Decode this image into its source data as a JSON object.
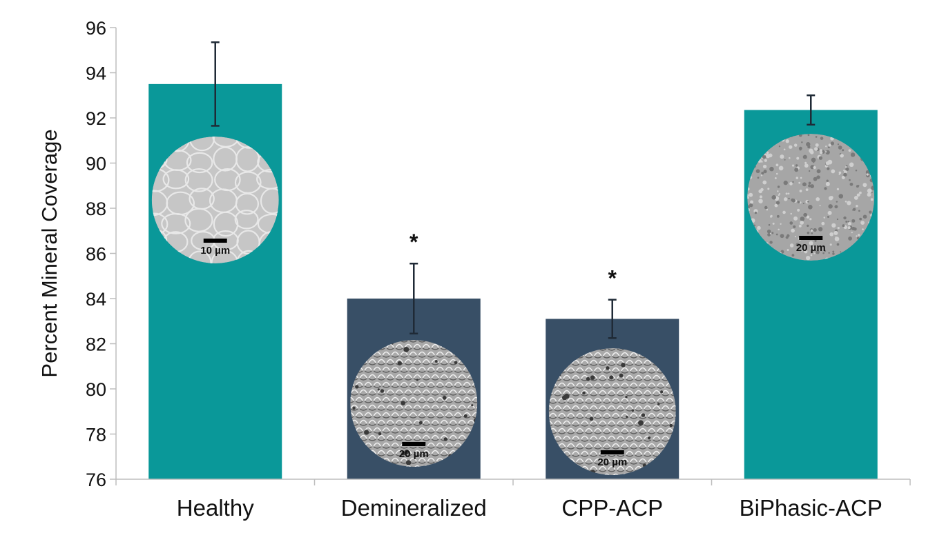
{
  "chart_data": {
    "type": "bar",
    "title": "",
    "xlabel": "",
    "ylabel": "Percent Mineral Coverage",
    "ylim": [
      76,
      96
    ],
    "yticks": [
      76,
      78,
      80,
      82,
      84,
      86,
      88,
      90,
      92,
      94,
      96
    ],
    "grid": false,
    "legend": "none",
    "categories": [
      "Healthy",
      "Demineralized",
      "CPP-ACP",
      "BiPhasic-ACP"
    ],
    "values": [
      93.5,
      84.0,
      83.1,
      92.35
    ],
    "errors": [
      1.85,
      1.55,
      0.85,
      0.65
    ],
    "colors": [
      "#0a9899",
      "#384f66",
      "#384f66",
      "#0a9899"
    ],
    "annotations": [
      "",
      "*",
      "*",
      ""
    ],
    "inset_images": [
      {
        "description": "SEM micrograph of healthy enamel surface",
        "scale_bar": "10 µm"
      },
      {
        "description": "SEM micrograph of demineralized enamel surface",
        "scale_bar": "20 µm"
      },
      {
        "description": "SEM micrograph of CPP-ACP treated enamel surface",
        "scale_bar": "20 µm"
      },
      {
        "description": "SEM micrograph of BiPhasic-ACP treated enamel surface",
        "scale_bar": "20 µm"
      }
    ]
  }
}
